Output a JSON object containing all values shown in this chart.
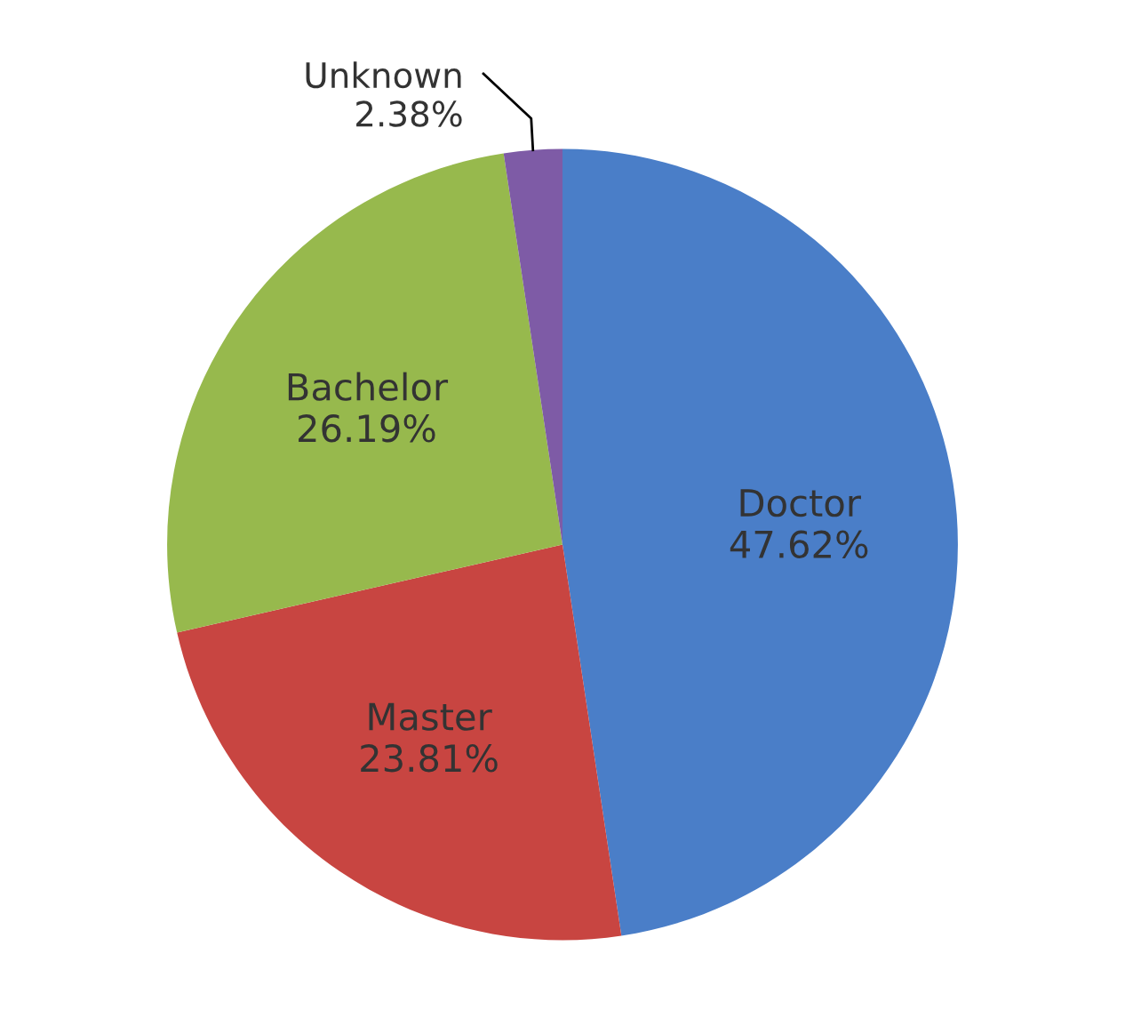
{
  "chart_data": {
    "type": "pie",
    "categories": [
      "Doctor",
      "Master",
      "Bachelor",
      "Unknown"
    ],
    "values": [
      47.62,
      23.81,
      26.19,
      2.38
    ],
    "value_labels": [
      "47.62%",
      "23.81%",
      "26.19%",
      "2.38%"
    ],
    "colors": [
      "#4a7ec8",
      "#c84541",
      "#97b94d",
      "#7e5ba6"
    ]
  }
}
